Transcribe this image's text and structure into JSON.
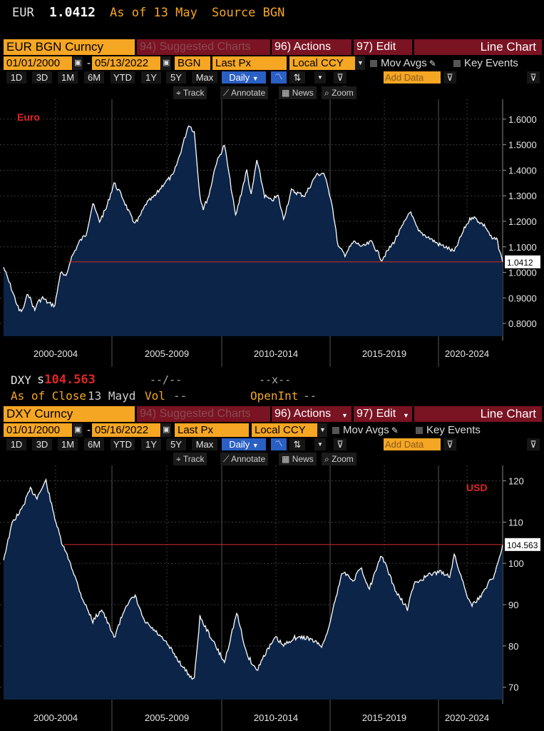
{
  "top": {
    "ticker": "EUR",
    "price": "1.0412",
    "as_of": "As of 13 May",
    "source": "Source BGN"
  },
  "panel1": {
    "security": "EUR BGN Curncy",
    "suggested": "94) Suggested Charts",
    "actions": "96) Actions",
    "edit": "97) Edit",
    "chart_type": "Line Chart",
    "start_date": "01/01/2000",
    "end_date": "05/13/2022",
    "source": "BGN",
    "field": "Last Px",
    "currency": "Local CCY",
    "mov_avgs": "Mov Avgs",
    "key_events": "Key Events",
    "add_data": "Add Data",
    "periods": [
      "1D",
      "3D",
      "1M",
      "6M",
      "YTD",
      "1Y",
      "5Y",
      "Max"
    ],
    "frequency": "Daily",
    "tools": [
      "Track",
      "Annotate",
      "News",
      "Zoom"
    ]
  },
  "info2": {
    "ticker": "DXY",
    "price_prefix": "s",
    "price": "104.563",
    "dash1": "--/--",
    "dash2": "--x--",
    "as_of_close": "As of Close",
    "date": "13 Mayd",
    "vol": "Vol",
    "vol_val": "--",
    "openint": "OpenInt",
    "openint_val": "--"
  },
  "panel2": {
    "security": "DXY Curncy",
    "suggested": "94) Suggested Charts",
    "actions": "96) Actions",
    "edit": "97) Edit",
    "chart_type": "Line Chart",
    "start_date": "01/01/2000",
    "end_date": "05/16/2022",
    "field": "Last Px",
    "currency": "Local CCY",
    "mov_avgs": "Mov Avgs",
    "key_events": "Key Events",
    "add_data": "Add Data",
    "periods": [
      "1D",
      "3D",
      "1M",
      "6M",
      "YTD",
      "1Y",
      "5Y",
      "Max"
    ],
    "frequency": "Daily",
    "tools": [
      "Track",
      "Annotate",
      "News",
      "Zoom"
    ]
  },
  "colors": {
    "amber": "#f5a623",
    "header_red": "#7a1322",
    "area_fill": "#0b2447",
    "line": "#ffffff",
    "ref_line": "#c0282d",
    "series_label": "#e02525",
    "active_blue": "#2a5fc4"
  },
  "chart_data": [
    {
      "type": "area",
      "series_label": "Euro",
      "last_value_label": "1.0412",
      "last_value": 1.0412,
      "ylim": [
        0.75,
        1.65
      ],
      "yticks": [
        0.8,
        0.9,
        1.0,
        1.1,
        1.2,
        1.3,
        1.4,
        1.5,
        1.6
      ],
      "ytick_labels": [
        "0.8000",
        "0.9000",
        "1.0000",
        "1.1000",
        "1.2000",
        "1.3000",
        "1.4000",
        "1.5000",
        "1.6000"
      ],
      "xlim": [
        2000.0,
        2022.37
      ],
      "xtick_labels": [
        "2000-2004",
        "2005-2009",
        "2010-2014",
        "2015-2019",
        "2020-2024"
      ],
      "grid": true,
      "x": [
        2000.0,
        2000.3,
        2000.7,
        2000.85,
        2001.1,
        2001.4,
        2001.5,
        2001.75,
        2002.0,
        2002.3,
        2002.55,
        2002.8,
        2003.0,
        2003.4,
        2003.7,
        2004.0,
        2004.3,
        2004.6,
        2004.95,
        2005.3,
        2005.8,
        2006.0,
        2006.4,
        2006.8,
        2007.2,
        2007.6,
        2007.9,
        2008.3,
        2008.55,
        2008.8,
        2008.95,
        2009.2,
        2009.5,
        2009.9,
        2010.4,
        2010.9,
        2011.1,
        2011.35,
        2011.7,
        2012.0,
        2012.3,
        2012.55,
        2012.9,
        2013.5,
        2014.0,
        2014.35,
        2014.7,
        2015.0,
        2015.3,
        2015.7,
        2016.1,
        2016.5,
        2016.95,
        2017.5,
        2018.0,
        2018.2,
        2018.6,
        2019.0,
        2019.5,
        2019.8,
        2020.2,
        2020.4,
        2020.7,
        2021.0,
        2021.3,
        2021.6,
        2021.9,
        2022.1,
        2022.37
      ],
      "y": [
        1.02,
        0.95,
        0.85,
        0.85,
        0.92,
        0.85,
        0.88,
        0.9,
        0.88,
        0.87,
        1.0,
        0.98,
        1.05,
        1.12,
        1.15,
        1.27,
        1.2,
        1.25,
        1.35,
        1.3,
        1.2,
        1.2,
        1.27,
        1.3,
        1.35,
        1.38,
        1.46,
        1.58,
        1.55,
        1.3,
        1.25,
        1.3,
        1.42,
        1.5,
        1.22,
        1.4,
        1.3,
        1.44,
        1.3,
        1.28,
        1.3,
        1.21,
        1.32,
        1.3,
        1.38,
        1.39,
        1.28,
        1.1,
        1.07,
        1.12,
        1.1,
        1.12,
        1.05,
        1.12,
        1.2,
        1.24,
        1.16,
        1.14,
        1.11,
        1.1,
        1.08,
        1.12,
        1.18,
        1.22,
        1.2,
        1.18,
        1.13,
        1.13,
        1.04
      ]
    },
    {
      "type": "area",
      "series_label": "USD",
      "last_value_label": "104.563",
      "last_value": 104.563,
      "ylim": [
        67,
        122
      ],
      "yticks": [
        70,
        80,
        90,
        100,
        110,
        120
      ],
      "ytick_labels": [
        "70",
        "80",
        "90",
        "100",
        "110",
        "120"
      ],
      "xlim": [
        2000.0,
        2022.37
      ],
      "xtick_labels": [
        "2000-2004",
        "2005-2009",
        "2010-2014",
        "2015-2019",
        "2020-2024"
      ],
      "grid": true,
      "x": [
        2000.0,
        2000.4,
        2000.8,
        2001.2,
        2001.5,
        2001.9,
        2002.2,
        2002.6,
        2003.0,
        2003.5,
        2004.0,
        2004.4,
        2004.95,
        2005.5,
        2005.9,
        2006.3,
        2006.9,
        2007.4,
        2007.9,
        2008.3,
        2008.55,
        2008.8,
        2009.2,
        2009.9,
        2010.45,
        2010.9,
        2011.35,
        2011.7,
        2012.2,
        2012.55,
        2013.0,
        2013.6,
        2014.3,
        2014.6,
        2014.9,
        2015.2,
        2015.7,
        2016.0,
        2016.4,
        2016.95,
        2017.6,
        2018.1,
        2018.4,
        2019.0,
        2019.5,
        2020.0,
        2020.2,
        2020.5,
        2020.8,
        2021.0,
        2021.4,
        2021.8,
        2022.0,
        2022.37
      ],
      "y": [
        101,
        110,
        113,
        118,
        116,
        120,
        113,
        105,
        100,
        92,
        86,
        89,
        82,
        90,
        92,
        86,
        83,
        80,
        76,
        73,
        72,
        87,
        83,
        76,
        88,
        78,
        74,
        78,
        82,
        80,
        82,
        82,
        80,
        85,
        92,
        98,
        96,
        99,
        94,
        102,
        93,
        89,
        95,
        97,
        98,
        97,
        102,
        97,
        92,
        90,
        92,
        96,
        97,
        104.5
      ]
    }
  ]
}
